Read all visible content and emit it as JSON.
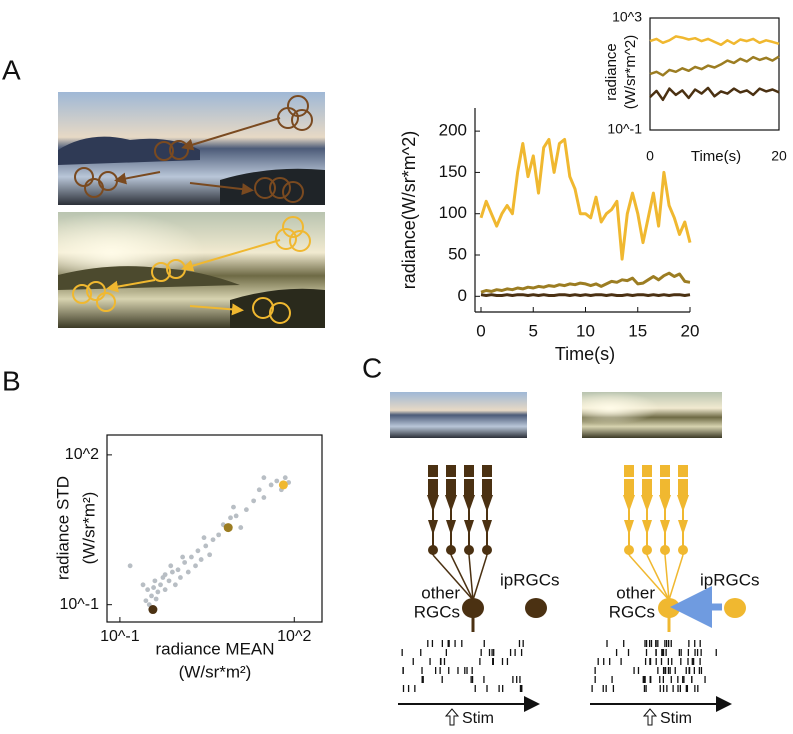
{
  "panel_labels": [
    "A",
    "B",
    "C"
  ],
  "diagram": {
    "left": {
      "other_rgcs": [
        "other",
        "RGCs"
      ],
      "iprgcs": "ipRGCs",
      "stim": "Stim"
    },
    "right": {
      "other_rgcs": [
        "other",
        "RGCs"
      ],
      "iprgcs": "ipRGCs",
      "stim": "Stim"
    }
  },
  "chart_data": [
    {
      "type": "line",
      "xlabel": "Time(s)",
      "ylabel": [
        "radiance(W/sr*m^2)"
      ],
      "x": [
        0,
        0.5,
        1,
        1.5,
        2,
        2.5,
        3,
        3.5,
        4,
        4.5,
        5,
        5.5,
        6,
        6.5,
        7,
        7.5,
        8,
        8.5,
        9,
        9.5,
        10,
        10.5,
        11,
        11.5,
        12,
        12.5,
        13,
        13.5,
        14,
        14.5,
        15,
        15.5,
        16,
        16.5,
        17,
        17.5,
        18,
        18.5,
        19,
        19.5,
        20
      ],
      "xlim": [
        0,
        20
      ],
      "xticks": [
        0,
        5,
        10,
        15,
        20
      ],
      "ylim": [
        -19,
        228
      ],
      "yticks": [
        0,
        50,
        100,
        150,
        200
      ],
      "box": false,
      "log_y": false,
      "series": [
        {
          "color": "#f0b830",
          "values": [
            95,
            115,
            100,
            85,
            100,
            110,
            100,
            150,
            185,
            145,
            170,
            125,
            180,
            190,
            150,
            185,
            190,
            145,
            130,
            100,
            100,
            95,
            120,
            90,
            100,
            105,
            115,
            45,
            100,
            125,
            100,
            65,
            95,
            125,
            85,
            150,
            110,
            95,
            75,
            90,
            65
          ]
        },
        {
          "color": "#9c7d22",
          "values": [
            5,
            7,
            6,
            8,
            7,
            9,
            8,
            10,
            9,
            11,
            10,
            12,
            11,
            13,
            12,
            14,
            13,
            15,
            14,
            16,
            15,
            13,
            15,
            12,
            15,
            18,
            17,
            20,
            19,
            22,
            15,
            16,
            20,
            24,
            20,
            25,
            28,
            24,
            27,
            18,
            17
          ]
        },
        {
          "color": "#4b3112",
          "values": [
            2,
            1,
            2,
            1,
            1,
            2,
            1,
            2,
            2,
            1,
            2,
            1,
            2,
            1,
            1,
            2,
            2,
            1,
            2,
            1,
            2,
            1,
            2,
            2,
            1,
            2,
            1,
            1,
            2,
            1,
            2,
            2,
            1,
            2,
            1,
            2,
            1,
            2,
            2,
            1,
            2
          ]
        }
      ]
    },
    {
      "type": "line",
      "xlabel": "Time(s)",
      "ylabel": [
        "radiance",
        "(W/sr*m^2)"
      ],
      "x": [
        0,
        1,
        2,
        3,
        4,
        5,
        6,
        7,
        8,
        9,
        10,
        11,
        12,
        13,
        14,
        15,
        16,
        17,
        18,
        19,
        20
      ],
      "xlim": [
        0,
        20
      ],
      "xticks": [
        0,
        20
      ],
      "ylim": [
        0.1,
        1000
      ],
      "yticks": [
        {
          "value": 0.1,
          "label": "10^-1"
        },
        {
          "value": 1000,
          "label": "10^3"
        }
      ],
      "box": true,
      "log_y": true,
      "series": [
        {
          "color": "#f0b830",
          "values": [
            150,
            180,
            130,
            160,
            220,
            200,
            170,
            190,
            150,
            180,
            140,
            110,
            160,
            120,
            170,
            150,
            180,
            130,
            160,
            140,
            120
          ]
        },
        {
          "color": "#9c7d22",
          "values": [
            10,
            12,
            9,
            14,
            12,
            16,
            13,
            18,
            15,
            20,
            17,
            22,
            30,
            25,
            35,
            28,
            40,
            32,
            38,
            30,
            42
          ]
        },
        {
          "color": "#4b3112",
          "values": [
            1.5,
            2.5,
            1.2,
            3,
            1.8,
            2.6,
            1.4,
            2.8,
            2,
            3.2,
            1.6,
            2.4,
            2,
            3,
            2.2,
            2.6,
            1.8,
            3,
            2.4,
            2.8,
            2.2
          ]
        }
      ]
    },
    {
      "type": "scatter",
      "xlabel": [
        "radiance MEAN",
        "(W/sr*m²)"
      ],
      "ylabel": [
        "radiance STD",
        "(W/sr*m²)"
      ],
      "xlim": [
        0.06,
        300
      ],
      "xticks": [
        {
          "value": 0.1,
          "label": "10^-1"
        },
        {
          "value": 100,
          "label": "10^2"
        }
      ],
      "ylim": [
        0.045,
        250
      ],
      "yticks": [
        {
          "value": 0.1,
          "label": "10^-1"
        },
        {
          "value": 100,
          "label": "10^2"
        }
      ],
      "box": true,
      "log_x": true,
      "log_y": true,
      "series": [
        {
          "color": "#b8bec4",
          "x": [
            0.15,
            0.25,
            0.3,
            0.35,
            0.4,
            0.45,
            0.5,
            0.55,
            0.6,
            0.7,
            0.8,
            0.9,
            1.0,
            1.1,
            1.3,
            1.5,
            1.7,
            2.0,
            2.2,
            2.5,
            3.0,
            3.5,
            4.0,
            5.0,
            6.0,
            8.0,
            10,
            12,
            15,
            20,
            25,
            30,
            40,
            50,
            60,
            70,
            80,
            30,
            0.28,
            0.32,
            0.38,
            0.42,
            0.6,
            0.75,
            1.2,
            2.8,
            9
          ],
          "values": [
            0.6,
            0.25,
            0.2,
            0.15,
            0.3,
            0.18,
            0.25,
            0.35,
            0.2,
            0.3,
            0.45,
            0.25,
            0.5,
            0.35,
            0.7,
            0.45,
            0.9,
            0.6,
            1.2,
            0.8,
            1.5,
            1.0,
            2.0,
            2.5,
            4.0,
            5.5,
            6,
            3.5,
            8,
            12,
            20,
            14,
            25,
            30,
            20,
            35,
            28,
            35,
            0.12,
            0.1,
            0.22,
            0.13,
            0.4,
            0.6,
            0.9,
            2.2,
            9
          ]
        },
        {
          "color": "#4b3112",
          "x": [
            0.37
          ],
          "values": [
            0.08
          ]
        },
        {
          "color": "#9c7d22",
          "x": [
            7.3
          ],
          "values": [
            3.5
          ]
        },
        {
          "color": "#f0b830",
          "x": [
            65
          ],
          "values": [
            25
          ]
        }
      ]
    }
  ]
}
